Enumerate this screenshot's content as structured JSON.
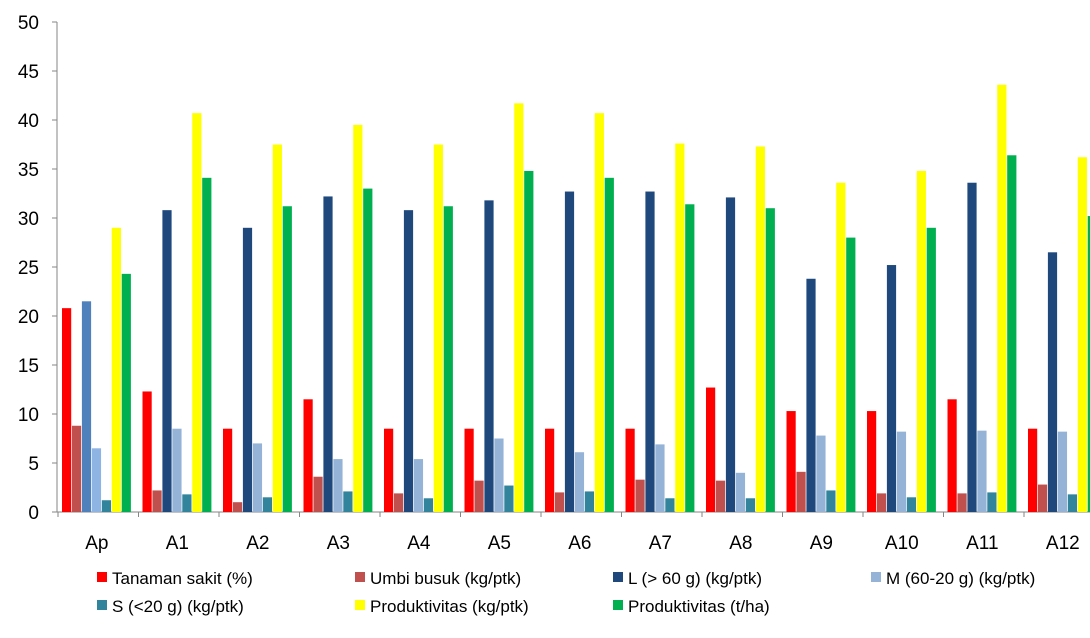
{
  "chart_data": {
    "type": "bar",
    "title": "",
    "xlabel": "",
    "ylabel": "",
    "ylim": [
      0,
      50
    ],
    "yticks": [
      0,
      5,
      10,
      15,
      20,
      25,
      30,
      35,
      40,
      45,
      50
    ],
    "grid": false,
    "legend_position": "bottom",
    "categories": [
      "Ap",
      "A1",
      "A2",
      "A3",
      "A4",
      "A5",
      "A6",
      "A7",
      "A8",
      "A9",
      "A10",
      "A11",
      "A12"
    ],
    "series": [
      {
        "name": "Tanaman sakit (%)",
        "color": "#ff0000",
        "values": [
          20.8,
          12.3,
          8.5,
          11.5,
          8.5,
          8.5,
          8.5,
          8.5,
          12.7,
          10.3,
          10.3,
          11.5,
          8.5
        ]
      },
      {
        "name": "Umbi busuk (kg/ptk)",
        "color": "#c0504d",
        "values": [
          8.8,
          2.2,
          1.0,
          3.6,
          1.9,
          3.2,
          2.0,
          3.3,
          3.2,
          4.1,
          1.9,
          1.9,
          2.8
        ]
      },
      {
        "name": "L (> 60 g) (kg/ptk)",
        "color": "#1f497d",
        "values": [
          21.5,
          30.8,
          29.0,
          32.2,
          30.8,
          31.8,
          32.7,
          32.7,
          32.1,
          23.8,
          25.2,
          33.6,
          26.5
        ],
        "first_color": "#4f81bd"
      },
      {
        "name": "M (60-20 g) (kg/ptk)",
        "color": "#95b3d7",
        "values": [
          6.5,
          8.5,
          7.0,
          5.4,
          5.4,
          7.5,
          6.1,
          6.9,
          4.0,
          7.8,
          8.2,
          8.3,
          8.2
        ]
      },
      {
        "name": "S (<20 g) (kg/ptk)",
        "color": "#31849b",
        "values": [
          1.2,
          1.8,
          1.5,
          2.1,
          1.4,
          2.7,
          2.1,
          1.4,
          1.4,
          2.2,
          1.5,
          2.0,
          1.8
        ]
      },
      {
        "name": "Produktivitas (kg/ptk)",
        "color": "#ffff00",
        "values": [
          29.0,
          40.7,
          37.5,
          39.5,
          37.5,
          41.7,
          40.7,
          37.6,
          37.3,
          33.6,
          34.8,
          43.6,
          36.2
        ]
      },
      {
        "name": "Produktivitas (t/ha)",
        "color": "#00b050",
        "values": [
          24.3,
          34.1,
          31.2,
          33.0,
          31.2,
          34.8,
          34.1,
          31.4,
          31.0,
          28.0,
          29.0,
          36.4,
          30.2
        ]
      }
    ]
  }
}
